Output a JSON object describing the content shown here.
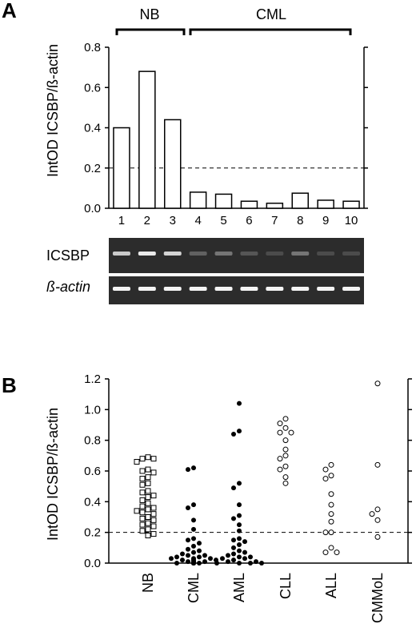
{
  "panel_a": {
    "letter": "A",
    "group_labels": [
      "NB",
      "CML"
    ],
    "gel_labels": [
      "ICSBP",
      "ß-actin"
    ]
  },
  "panel_b": {
    "letter": "B"
  },
  "colors": {
    "ink": "#000000",
    "gel": "#2c2c2c",
    "band": "#ffffff"
  },
  "chart_data": [
    {
      "type": "bar",
      "ylabel": "IntOD ICSBP/ß-actin",
      "categories": [
        "1",
        "2",
        "3",
        "4",
        "5",
        "6",
        "7",
        "8",
        "9",
        "10"
      ],
      "values": [
        0.4,
        0.68,
        0.44,
        0.08,
        0.07,
        0.035,
        0.025,
        0.075,
        0.04,
        0.035
      ],
      "ylim": [
        0,
        0.8
      ],
      "yticks": [
        "0.0",
        "0.2",
        "0.4",
        "0.6",
        "0.8"
      ],
      "threshold": 0.2,
      "grid": false,
      "gel": {
        "icsbp_intensity": [
          0.75,
          0.9,
          0.8,
          0.25,
          0.35,
          0.2,
          0.15,
          0.35,
          0.15,
          0.15
        ],
        "actin_intensity": [
          0.95,
          0.95,
          0.95,
          0.95,
          0.95,
          0.95,
          0.95,
          0.95,
          0.95,
          0.95
        ]
      }
    },
    {
      "type": "scatter",
      "ylabel": "IntOD ICSBP/ß-actin",
      "categories": [
        "NB",
        "CML",
        "AML",
        "CLL",
        "ALL",
        "CMMoL"
      ],
      "ylim": [
        0,
        1.2
      ],
      "yticks": [
        "0.0",
        "0.2",
        "0.4",
        "0.6",
        "0.8",
        "1.0",
        "1.2"
      ],
      "threshold": 0.2,
      "grid": false,
      "series": [
        {
          "marker": "square-open",
          "values": [
            0.69,
            0.68,
            0.68,
            0.66,
            0.61,
            0.6,
            0.59,
            0.56,
            0.55,
            0.52,
            0.51,
            0.47,
            0.46,
            0.44,
            0.43,
            0.41,
            0.39,
            0.37,
            0.36,
            0.35,
            0.34,
            0.33,
            0.32,
            0.3,
            0.29,
            0.28,
            0.26,
            0.25,
            0.24,
            0.22,
            0.21,
            0.19,
            0.18
          ]
        },
        {
          "marker": "circle-filled",
          "values": [
            0.62,
            0.61,
            0.38,
            0.36,
            0.28,
            0.22,
            0.16,
            0.15,
            0.13,
            0.11,
            0.09,
            0.08,
            0.07,
            0.06,
            0.05,
            0.05,
            0.04,
            0.04,
            0.03,
            0.03,
            0.03,
            0.02,
            0.02,
            0.02,
            0.01,
            0.01,
            0.01,
            0.01,
            0.0,
            0.0,
            0.0,
            0.0,
            0.0,
            0.0,
            0.0,
            0.0,
            0.0,
            0.0
          ]
        },
        {
          "marker": "circle-filled",
          "values": [
            1.04,
            0.86,
            0.84,
            0.52,
            0.49,
            0.38,
            0.31,
            0.29,
            0.25,
            0.21,
            0.16,
            0.15,
            0.14,
            0.12,
            0.1,
            0.08,
            0.07,
            0.06,
            0.05,
            0.04,
            0.04,
            0.03,
            0.03,
            0.02,
            0.01,
            0.01,
            0.0,
            0.0,
            0.0,
            0.0
          ]
        },
        {
          "marker": "circle-open",
          "values": [
            0.94,
            0.91,
            0.88,
            0.85,
            0.85,
            0.8,
            0.74,
            0.7,
            0.68,
            0.63,
            0.61,
            0.56,
            0.52
          ]
        },
        {
          "marker": "circle-open",
          "values": [
            0.64,
            0.61,
            0.57,
            0.55,
            0.45,
            0.38,
            0.32,
            0.27,
            0.2,
            0.2,
            0.1,
            0.07,
            0.07
          ]
        },
        {
          "marker": "circle-open",
          "values": [
            1.17,
            0.64,
            0.35,
            0.32,
            0.28,
            0.17
          ]
        }
      ]
    }
  ]
}
